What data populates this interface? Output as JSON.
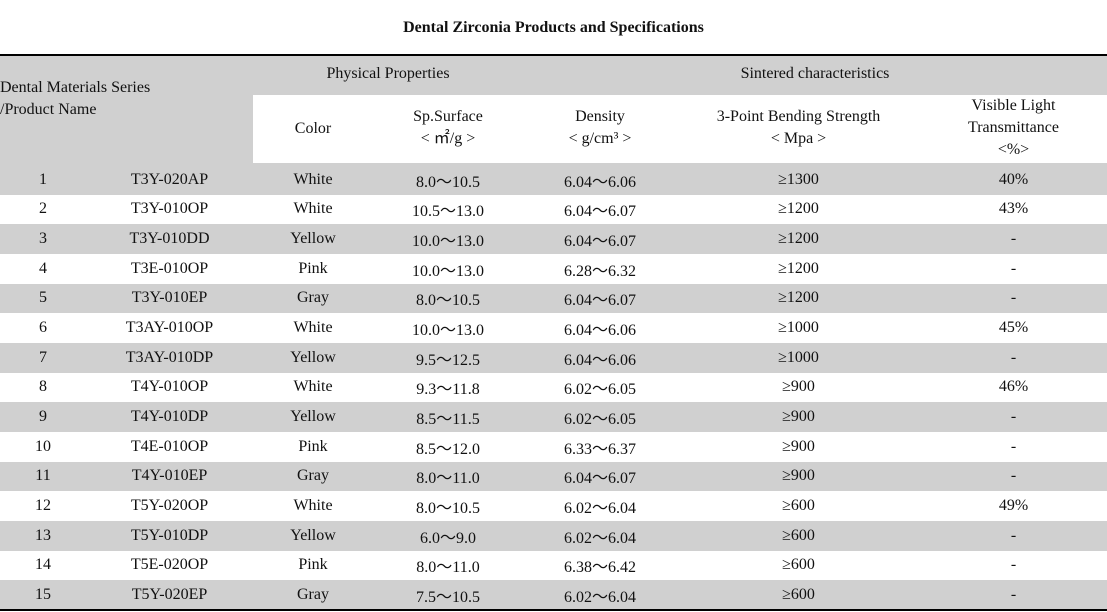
{
  "title": "Dental Zirconia  Products and Specifications",
  "header": {
    "series_line1": "Dental Materials Series",
    "series_line2": "/Product Name",
    "physical": "Physical Properties",
    "sintered": "Sintered characteristics",
    "color": "Color",
    "sp_surface": "Sp.Surface",
    "sp_unit": "< ㎡/g >",
    "density": "Density",
    "density_unit": "< g/cm³ >",
    "bending": "3-Point Bending Strength",
    "bending_unit": "< Mpa >",
    "vlt1": "Visible Light",
    "vlt2": "Transmittance",
    "vlt3": "<%>"
  },
  "rows": [
    [
      "1",
      "T3Y-020AP",
      "White",
      "8.0～10.5",
      "6.04～6.06",
      "≥1300",
      "40%"
    ],
    [
      "2",
      "T3Y-010OP",
      "White",
      "10.5～13.0",
      "6.04～6.07",
      "≥1200",
      "43%"
    ],
    [
      "3",
      "T3Y-010DD",
      "Yellow",
      "10.0～13.0",
      "6.04～6.07",
      "≥1200",
      "-"
    ],
    [
      "4",
      "T3E-010OP",
      "Pink",
      "10.0～13.0",
      "6.28～6.32",
      "≥1200",
      "-"
    ],
    [
      "5",
      "T3Y-010EP",
      "Gray",
      "8.0～10.5",
      "6.04～6.07",
      "≥1200",
      "-"
    ],
    [
      "6",
      "T3AY-010OP",
      "White",
      "10.0～13.0",
      "6.04～6.06",
      "≥1000",
      "45%"
    ],
    [
      "7",
      "T3AY-010DP",
      "Yellow",
      "9.5～12.5",
      "6.04～6.06",
      "≥1000",
      "-"
    ],
    [
      "8",
      "T4Y-010OP",
      "White",
      "9.3～11.8",
      "6.02～6.05",
      "≥900",
      "46%"
    ],
    [
      "9",
      "T4Y-010DP",
      "Yellow",
      "8.5～11.5",
      "6.02～6.05",
      "≥900",
      "-"
    ],
    [
      "10",
      "T4E-010OP",
      "Pink",
      "8.5～12.0",
      "6.33～6.37",
      "≥900",
      "-"
    ],
    [
      "11",
      "T4Y-010EP",
      "Gray",
      "8.0～11.0",
      "6.04～6.07",
      "≥900",
      "-"
    ],
    [
      "12",
      "T5Y-020OP",
      "White",
      "8.0～10.5",
      "6.02～6.04",
      "≥600",
      "49%"
    ],
    [
      "13",
      "T5Y-010DP",
      "Yellow",
      "6.0～9.0",
      "6.02～6.04",
      "≥600",
      "-"
    ],
    [
      "14",
      "T5E-020OP",
      "Pink",
      "8.0～11.0",
      "6.38～6.42",
      "≥600",
      "-"
    ],
    [
      "15",
      "T5Y-020EP",
      "Gray",
      "7.5～10.5",
      "6.02～6.04",
      "≥600",
      "-"
    ]
  ]
}
